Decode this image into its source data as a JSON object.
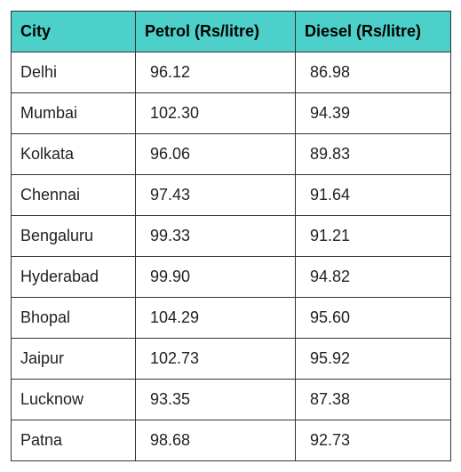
{
  "table": {
    "header_bg": "#4dd0c9",
    "header_color": "#000000",
    "border_color": "#333333",
    "columns": [
      "City",
      "Petrol (Rs/litre)",
      "Diesel (Rs/litre)"
    ],
    "rows": [
      [
        "Delhi",
        "96.12",
        "86.98"
      ],
      [
        "Mumbai",
        "102.30",
        "94.39"
      ],
      [
        "Kolkata",
        "96.06",
        "89.83"
      ],
      [
        "Chennai",
        "97.43",
        "91.64"
      ],
      [
        "Bengaluru",
        "99.33",
        "91.21"
      ],
      [
        "Hyderabad",
        "99.90",
        "94.82"
      ],
      [
        "Bhopal",
        "104.29",
        "95.60"
      ],
      [
        "Jaipur",
        "102.73",
        "95.92"
      ],
      [
        "Lucknow",
        "93.35",
        "87.38"
      ],
      [
        "Patna",
        "98.68",
        "92.73"
      ]
    ]
  }
}
